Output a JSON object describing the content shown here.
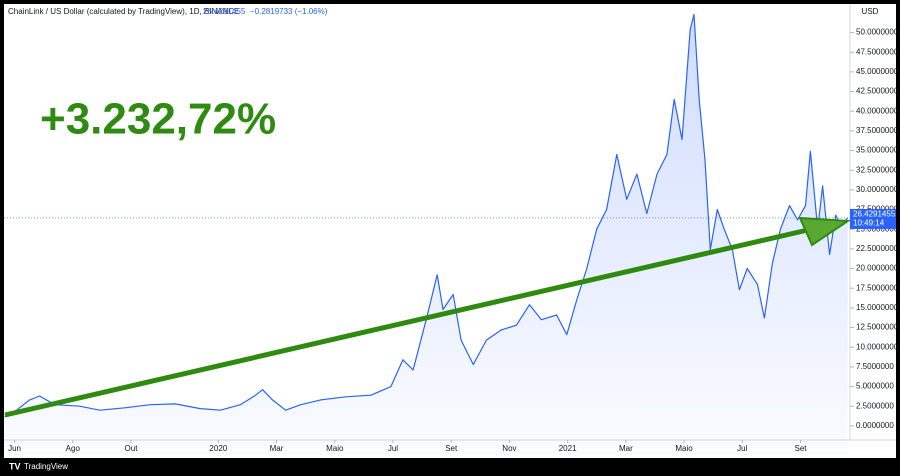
{
  "chart_data": {
    "type": "line",
    "title": "ChainLink / US Dollar (calculated by TradingView), 1D, BINANCE",
    "last_price": 26.4291455,
    "change": "−0.2819733 (−1.06%)",
    "time_label": "10:49:14",
    "y_unit": "USD",
    "annotation": "+3.232,72%",
    "color": "#2962ff",
    "x": [
      -0.34,
      0,
      0.52,
      0.86,
      1.38,
      2.24,
      2.93,
      3.79,
      4.66,
      5.52,
      6.38,
      7.07,
      7.76,
      8.28,
      8.52,
      8.86,
      9.31,
      9.83,
      10.52,
      11.38,
      12.24,
      12.93,
      13.34,
      13.69,
      14.14,
      14.52,
      14.72,
      15.07,
      15.34,
      15.76,
      16.21,
      16.72,
      17.24,
      17.69,
      18.1,
      18.62,
      18.97,
      19.31,
      19.66,
      20.0,
      20.34,
      20.69,
      21.03,
      21.38,
      21.72,
      22.07,
      22.41,
      22.66,
      22.93,
      23.21,
      23.34,
      23.52,
      23.72,
      23.9,
      24.14,
      24.38,
      24.66,
      24.9,
      25.17,
      25.52,
      25.76,
      26.03,
      26.31,
      26.62,
      26.9,
      27.17,
      27.34,
      27.59,
      27.76,
      28.0,
      28.21,
      28.38,
      28.62
    ],
    "values": [
      1.15,
      1.8,
      3.3,
      3.8,
      2.7,
      2.5,
      2.0,
      2.3,
      2.7,
      2.8,
      2.2,
      2.0,
      2.7,
      3.9,
      4.6,
      3.3,
      2.0,
      2.7,
      3.3,
      3.7,
      3.9,
      5.0,
      8.4,
      7.1,
      13.5,
      19.2,
      14.8,
      16.7,
      10.9,
      7.8,
      10.9,
      12.2,
      12.8,
      15.4,
      13.5,
      14.1,
      11.6,
      16.0,
      20.0,
      25.0,
      27.5,
      34.5,
      28.8,
      32.0,
      27.0,
      32.0,
      34.5,
      41.5,
      36.4,
      50.4,
      52.3,
      41.5,
      33.8,
      22.4,
      27.5,
      25.0,
      22.4,
      17.3,
      20.0,
      18.0,
      13.7,
      20.6,
      25.0,
      28.0,
      26.2,
      28.0,
      34.9,
      25.0,
      30.5,
      21.8,
      26.8,
      25.5,
      26.4291455
    ],
    "xlim": [
      -0.5,
      28.7
    ],
    "xticks": [
      {
        "value": 0,
        "label": "Jun"
      },
      {
        "value": 2,
        "label": "Ago"
      },
      {
        "value": 4,
        "label": "Out"
      },
      {
        "value": 7,
        "label": "2020"
      },
      {
        "value": 9,
        "label": "Mar"
      },
      {
        "value": 11,
        "label": "Maio"
      },
      {
        "value": 13,
        "label": "Jul"
      },
      {
        "value": 15,
        "label": "Set"
      },
      {
        "value": 17,
        "label": "Nov"
      },
      {
        "value": 19,
        "label": "2021"
      },
      {
        "value": 21,
        "label": "Mar"
      },
      {
        "value": 23,
        "label": "Maio"
      },
      {
        "value": 25,
        "label": "Jul"
      },
      {
        "value": 27,
        "label": "Set"
      }
    ],
    "ylim": [
      -3.7,
      53.5
    ],
    "yticks": [
      {
        "value": 0,
        "label": "0.0000000"
      },
      {
        "value": 2.5,
        "label": "2.5000000"
      },
      {
        "value": 5,
        "label": "5.0000000"
      },
      {
        "value": 7.5,
        "label": "7.5000000"
      },
      {
        "value": 10,
        "label": "10.0000000"
      },
      {
        "value": 12.5,
        "label": "12.5000000"
      },
      {
        "value": 15,
        "label": "15.0000000"
      },
      {
        "value": 17.5,
        "label": "17.5000000"
      },
      {
        "value": 20,
        "label": "20.0000000"
      },
      {
        "value": 22.5,
        "label": "22.5000000"
      },
      {
        "value": 25,
        "label": "25.0000000"
      },
      {
        "value": 27.5,
        "label": "27.5000000"
      },
      {
        "value": 30,
        "label": "30.0000000"
      },
      {
        "value": 32.5,
        "label": "32.5000000"
      },
      {
        "value": 35,
        "label": "35.0000000"
      },
      {
        "value": 37.5,
        "label": "37.5000000"
      },
      {
        "value": 40,
        "label": "40.0000000"
      },
      {
        "value": 42.5,
        "label": "42.5000000"
      },
      {
        "value": 45,
        "label": "45.0000000"
      },
      {
        "value": 47.5,
        "label": "47.5000000"
      },
      {
        "value": 50,
        "label": "50.0000000"
      }
    ]
  },
  "brand": "TradingView"
}
